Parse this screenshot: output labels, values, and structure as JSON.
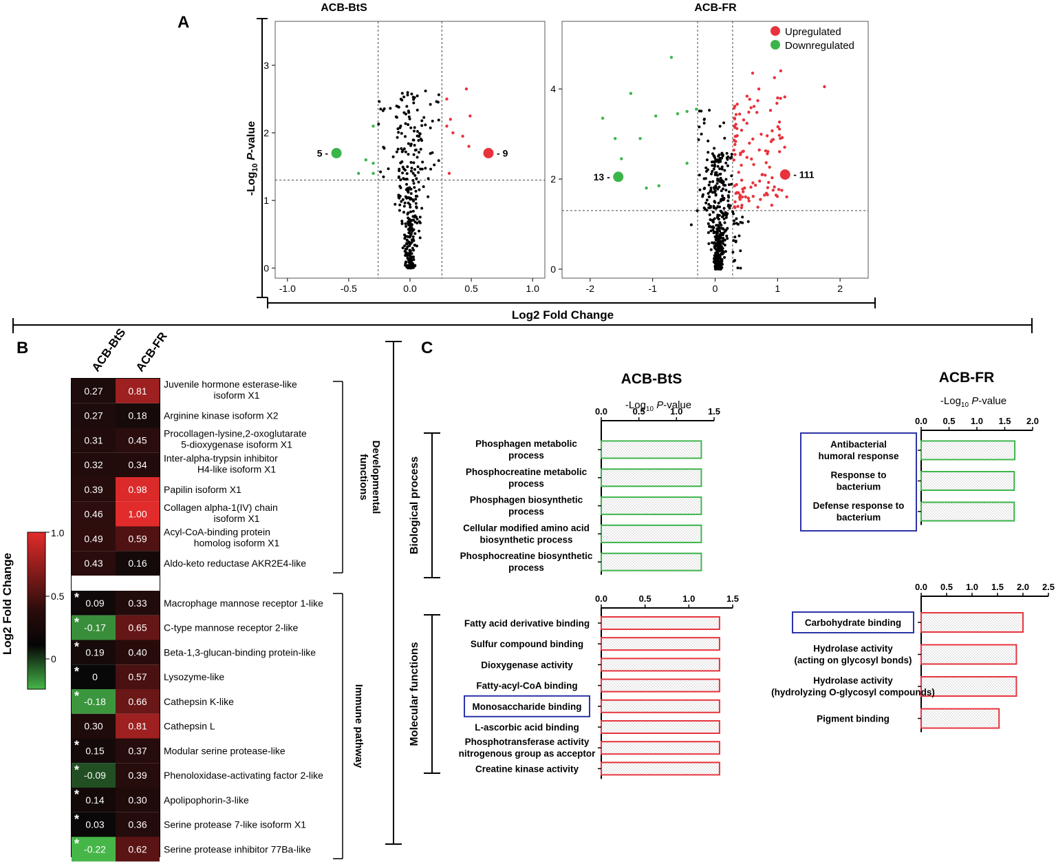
{
  "panel_labels": {
    "a": "A",
    "b": "B",
    "c": "C"
  },
  "colors": {
    "up": "#e8333c",
    "down": "#3bb54a",
    "axis": "#000000",
    "box": "#2b33a6",
    "hm_high": "#e22b2b",
    "hm_mid": "#300d0d",
    "hm_low": "#46b649"
  },
  "chart_data": [
    {
      "id": "A",
      "type": "scatter",
      "subtype": "volcano",
      "shared_xlabel": "Log2 Fold Change",
      "ylabel": "-Log10 P-value",
      "legend": [
        {
          "label": "Upregulated",
          "color": "#e8333c"
        },
        {
          "label": "Downregulated",
          "color": "#3bb54a"
        }
      ],
      "legend_position": "top-right",
      "plots": [
        {
          "title": "ACB-BtS",
          "xlim": [
            -1.1,
            1.1
          ],
          "ylim": [
            -0.15,
            3.65
          ],
          "xticks": [
            -1.0,
            -0.5,
            0.0,
            0.5,
            1.0
          ],
          "xtick_labels": [
            "-1.0",
            "-0.5",
            "0.0",
            "0.5",
            "1.0"
          ],
          "yticks": [
            0,
            1,
            2,
            3
          ],
          "ytick_labels": [
            "0",
            "1",
            "2",
            "3"
          ],
          "vlines": [
            -0.26,
            0.26
          ],
          "hline": 1.3,
          "up_count": 9,
          "down_count": 5,
          "up_label": "- 9",
          "down_label": "5 -",
          "up_marker": [
            0.64,
            1.7
          ],
          "down_marker": [
            -0.6,
            1.7
          ],
          "up_points": [
            [
              0.3,
              2.5
            ],
            [
              0.46,
              2.65
            ],
            [
              0.33,
              2.2
            ],
            [
              0.49,
              2.25
            ],
            [
              0.35,
              2.0
            ],
            [
              0.3,
              2.1
            ],
            [
              0.43,
              1.95
            ],
            [
              0.48,
              1.8
            ],
            [
              0.32,
              1.4
            ]
          ],
          "down_points": [
            [
              -0.3,
              2.1
            ],
            [
              -0.36,
              1.6
            ],
            [
              -0.3,
              1.55
            ],
            [
              -0.3,
              1.4
            ],
            [
              -0.42,
              1.4
            ]
          ]
        },
        {
          "title": "ACB-FR",
          "xlim": [
            -2.45,
            2.45
          ],
          "ylim": [
            -0.2,
            5.5
          ],
          "xticks": [
            -2,
            -1,
            0,
            1,
            2
          ],
          "xtick_labels": [
            "-2",
            "-1",
            "0",
            "1",
            "2"
          ],
          "yticks": [
            0,
            2,
            4
          ],
          "ytick_labels": [
            "0",
            "2",
            "4"
          ],
          "vlines": [
            -0.28,
            0.28
          ],
          "hline": 1.3,
          "up_count": 111,
          "down_count": 13,
          "up_label": "- 111",
          "down_label": "13 -",
          "up_marker": [
            1.12,
            2.1
          ],
          "down_marker": [
            -1.55,
            2.05
          ],
          "down_points": [
            [
              -0.7,
              4.7
            ],
            [
              -1.35,
              3.9
            ],
            [
              -1.8,
              3.35
            ],
            [
              -1.6,
              2.9
            ],
            [
              -1.2,
              2.9
            ],
            [
              -0.95,
              3.4
            ],
            [
              -0.45,
              3.5
            ],
            [
              -0.3,
              3.55
            ],
            [
              -0.6,
              3.45
            ],
            [
              -1.5,
              2.45
            ],
            [
              -0.45,
              2.35
            ],
            [
              -1.1,
              1.8
            ],
            [
              -0.9,
              1.85
            ]
          ]
        }
      ]
    },
    {
      "id": "B",
      "type": "heatmap",
      "colorbar_label": "Log2 Fold Change",
      "colorbar_ticks": [
        "1.0",
        "0.5",
        "0"
      ],
      "columns": [
        "ACB-BtS",
        "ACB-FR"
      ],
      "groups": [
        {
          "name_line1": "Developmental",
          "name_line2": "functions",
          "rows": [
            {
              "label1": "Juvenile hormone esterase-like",
              "label2": "isoform X1",
              "v1": 0.27,
              "t1": "0.27",
              "v2": 0.81,
              "t2": "0.81",
              "sig": false
            },
            {
              "label1": "Arginine kinase isoform X2",
              "label2": "",
              "v1": 0.27,
              "t1": "0.27",
              "v2": 0.18,
              "t2": "0.18",
              "sig": false
            },
            {
              "label1": "Procollagen-lysine,2-oxoglutarate",
              "label2": "5-dioxygenase isoform X1",
              "v1": 0.31,
              "t1": "0.31",
              "v2": 0.45,
              "t2": "0.45",
              "sig": false
            },
            {
              "label1": "Inter-alpha-trypsin inhibitor",
              "label2": "H4-like isoform X1",
              "v1": 0.32,
              "t1": "0.32",
              "v2": 0.34,
              "t2": "0.34",
              "sig": false
            },
            {
              "label1": "Papilin isoform X1",
              "label2": "",
              "v1": 0.39,
              "t1": "0.39",
              "v2": 0.98,
              "t2": "0.98",
              "sig": false
            },
            {
              "label1": "Collagen alpha-1(IV) chain",
              "label2": "isoform X1",
              "v1": 0.46,
              "t1": "0.46",
              "v2": 1.0,
              "t2": "1.00",
              "sig": false
            },
            {
              "label1": "Acyl-CoA-binding protein",
              "label2": "homolog isoform X1",
              "v1": 0.49,
              "t1": "0.49",
              "v2": 0.59,
              "t2": "0.59",
              "sig": false
            },
            {
              "label1": "Aldo-keto reductase AKR2E4-like",
              "label2": "",
              "v1": 0.43,
              "t1": "0.43",
              "v2": 0.16,
              "t2": "0.16",
              "sig": false
            }
          ]
        },
        {
          "name_line1": "Immune pathway",
          "name_line2": "",
          "rows": [
            {
              "label1": "Macrophage mannose receptor 1-like",
              "label2": "",
              "v1": 0.09,
              "t1": "0.09",
              "v2": 0.33,
              "t2": "0.33",
              "sig": true
            },
            {
              "label1": "C-type mannose receptor 2-like",
              "label2": "",
              "v1": -0.17,
              "t1": "-0.17",
              "v2": 0.65,
              "t2": "0.65",
              "sig": true
            },
            {
              "label1": "Beta-1,3-glucan-binding protein-like",
              "label2": "",
              "v1": 0.19,
              "t1": "0.19",
              "v2": 0.4,
              "t2": "0.40",
              "sig": true
            },
            {
              "label1": "Lysozyme-like",
              "label2": "",
              "v1": 0,
              "t1": "0",
              "v2": 0.57,
              "t2": "0.57",
              "sig": true
            },
            {
              "label1": "Cathepsin K-like",
              "label2": "",
              "v1": -0.18,
              "t1": "-0.18",
              "v2": 0.66,
              "t2": "0.66",
              "sig": true
            },
            {
              "label1": "Cathepsin L",
              "label2": "",
              "v1": 0.3,
              "t1": "0.30",
              "v2": 0.81,
              "t2": "0.81",
              "sig": false
            },
            {
              "label1": "Modular serine protease-like",
              "label2": "",
              "v1": 0.15,
              "t1": "0.15",
              "v2": 0.37,
              "t2": "0.37",
              "sig": true
            },
            {
              "label1": "Phenoloxidase-activating factor 2-like",
              "label2": "",
              "v1": -0.09,
              "t1": "-0.09",
              "v2": 0.39,
              "t2": "0.39",
              "sig": true
            },
            {
              "label1": "Apolipophorin-3-like",
              "label2": "",
              "v1": 0.14,
              "t1": "0.14",
              "v2": 0.3,
              "t2": "0.30",
              "sig": true
            },
            {
              "label1": "Serine protease 7-like isoform X1",
              "label2": "",
              "v1": 0.03,
              "t1": "0.03",
              "v2": 0.36,
              "t2": "0.36",
              "sig": true
            },
            {
              "label1": "Serine protease inhibitor 77Ba-like",
              "label2": "",
              "v1": -0.22,
              "t1": "-0.22",
              "v2": 0.62,
              "t2": "0.62",
              "sig": true
            }
          ]
        }
      ]
    },
    {
      "id": "C",
      "type": "bar",
      "orientation": "horizontal",
      "xlabel": "-Log10 P-value",
      "column_titles": [
        "ACB-BtS",
        "ACB-FR"
      ],
      "row_labels": [
        "Biological process",
        "Molecular functions"
      ],
      "plots": [
        {
          "id": "bp_bts",
          "color": "green",
          "xlim": [
            0,
            1.5
          ],
          "xtick_labels": [
            "0.0",
            "0.5",
            "1.0",
            "1.5"
          ],
          "bars": [
            {
              "l1": "Phosphagen metabolic",
              "l2": "process",
              "v": 1.33,
              "box": false
            },
            {
              "l1": "Phosphocreatine metabolic",
              "l2": "process",
              "v": 1.33,
              "box": false
            },
            {
              "l1": "Phosphagen biosynthetic",
              "l2": "process",
              "v": 1.33,
              "box": false
            },
            {
              "l1": "Cellular modified amino acid",
              "l2": "biosynthetic process",
              "v": 1.33,
              "box": false
            },
            {
              "l1": "Phosphocreatine biosynthetic",
              "l2": "process",
              "v": 1.33,
              "box": false
            }
          ]
        },
        {
          "id": "bp_fr",
          "color": "green",
          "xlim": [
            0,
            2.0
          ],
          "xtick_labels": [
            "0.0",
            "0.5",
            "1.0",
            "1.5",
            "2.0"
          ],
          "bars": [
            {
              "l1": "Antibacterial",
              "l2": "humoral response",
              "v": 1.68,
              "box": true
            },
            {
              "l1": "Response to",
              "l2": "bacterium",
              "v": 1.67,
              "box": true
            },
            {
              "l1": "Defense response to",
              "l2": "bacterium",
              "v": 1.67,
              "box": true
            }
          ]
        },
        {
          "id": "mf_bts",
          "color": "red",
          "xlim": [
            0,
            1.5
          ],
          "xtick_labels": [
            "0.0",
            "0.5",
            "1.0",
            "1.5"
          ],
          "bars": [
            {
              "l1": "Fatty acid derivative binding",
              "l2": "",
              "v": 1.35,
              "box": false
            },
            {
              "l1": "Sulfur compound binding",
              "l2": "",
              "v": 1.35,
              "box": false
            },
            {
              "l1": "Dioxygenase activity",
              "l2": "",
              "v": 1.35,
              "box": false
            },
            {
              "l1": "Fatty-acyl-CoA binding",
              "l2": "",
              "v": 1.35,
              "box": false
            },
            {
              "l1": "Monosaccharide binding",
              "l2": "",
              "v": 1.35,
              "box": true
            },
            {
              "l1": "L-ascorbic acid binding",
              "l2": "",
              "v": 1.35,
              "box": false
            },
            {
              "l1": "Phosphotransferase activity",
              "l2": "nitrogenous group as acceptor",
              "v": 1.35,
              "box": false
            },
            {
              "l1": "Creatine kinase activity",
              "l2": "",
              "v": 1.35,
              "box": false
            }
          ]
        },
        {
          "id": "mf_fr",
          "color": "red",
          "xlim": [
            0,
            2.5
          ],
          "xtick_labels": [
            "0.0",
            "0.5",
            "1.0",
            "1.5",
            "2.0",
            "2.5"
          ],
          "bars": [
            {
              "l1": "Carbohydrate binding",
              "l2": "",
              "v": 2.0,
              "box": true
            },
            {
              "l1": "Hydrolase activity",
              "l2": "(acting on glycosyl bonds)",
              "v": 1.87,
              "box": false
            },
            {
              "l1": "Hydrolase activity",
              "l2": "(hydrolyzing O-glycosyl compounds)",
              "v": 1.87,
              "box": false
            },
            {
              "l1": "Pigment binding",
              "l2": "",
              "v": 1.53,
              "box": false
            }
          ]
        }
      ]
    }
  ]
}
